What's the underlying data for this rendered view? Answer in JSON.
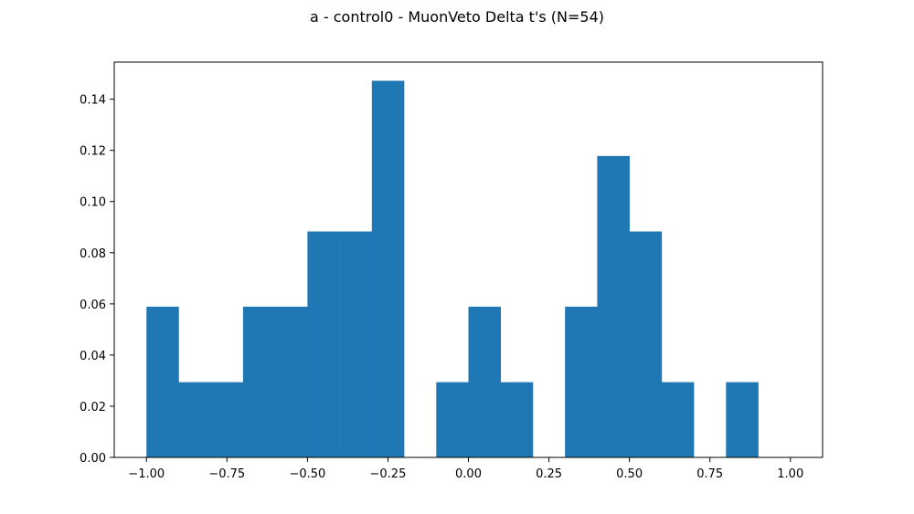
{
  "chart_data": {
    "type": "bar",
    "title": "a - control0 - MuonVeto Delta t's (N=54)",
    "xlabel": "",
    "ylabel": "",
    "bins": [
      {
        "x0": -1.0,
        "x1": -0.9,
        "value": 0.0589
      },
      {
        "x0": -0.9,
        "x1": -0.8,
        "value": 0.0294
      },
      {
        "x0": -0.8,
        "x1": -0.7,
        "value": 0.0294
      },
      {
        "x0": -0.7,
        "x1": -0.6,
        "value": 0.0589
      },
      {
        "x0": -0.6,
        "x1": -0.5,
        "value": 0.0589
      },
      {
        "x0": -0.5,
        "x1": -0.4,
        "value": 0.0883
      },
      {
        "x0": -0.4,
        "x1": -0.3,
        "value": 0.0883
      },
      {
        "x0": -0.3,
        "x1": -0.2,
        "value": 0.1472
      },
      {
        "x0": -0.2,
        "x1": -0.1,
        "value": 0.0
      },
      {
        "x0": -0.1,
        "x1": 0.0,
        "value": 0.0294
      },
      {
        "x0": 0.0,
        "x1": 0.1,
        "value": 0.0589
      },
      {
        "x0": 0.1,
        "x1": 0.2,
        "value": 0.0294
      },
      {
        "x0": 0.2,
        "x1": 0.3,
        "value": 0.0
      },
      {
        "x0": 0.3,
        "x1": 0.4,
        "value": 0.0589
      },
      {
        "x0": 0.4,
        "x1": 0.5,
        "value": 0.1178
      },
      {
        "x0": 0.5,
        "x1": 0.6,
        "value": 0.0883
      },
      {
        "x0": 0.6,
        "x1": 0.7,
        "value": 0.0294
      },
      {
        "x0": 0.7,
        "x1": 0.8,
        "value": 0.0
      },
      {
        "x0": 0.8,
        "x1": 0.9,
        "value": 0.0294
      },
      {
        "x0": 0.9,
        "x1": 1.0,
        "value": 0.0
      }
    ],
    "xlim": [
      -1.1,
      1.1
    ],
    "ylim": [
      0,
      0.1545
    ],
    "xticks": [
      -1.0,
      -0.75,
      -0.5,
      -0.25,
      0.0,
      0.25,
      0.5,
      0.75,
      1.0
    ],
    "xtick_labels": [
      "−1.00",
      "−0.75",
      "−0.50",
      "−0.25",
      "0.00",
      "0.25",
      "0.50",
      "0.75",
      "1.00"
    ],
    "yticks": [
      0.0,
      0.02,
      0.04,
      0.06,
      0.08,
      0.1,
      0.12,
      0.14
    ],
    "ytick_labels": [
      "0.00",
      "0.02",
      "0.04",
      "0.06",
      "0.08",
      "0.10",
      "0.12",
      "0.14"
    ],
    "grid": false,
    "bar_color": "#1f77b4"
  }
}
